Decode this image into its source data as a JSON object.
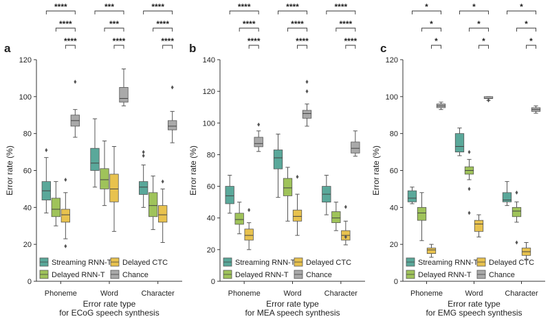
{
  "figure": {
    "legend": [
      {
        "label": "Streaming RNN-T",
        "color": "#5aa89a"
      },
      {
        "label": "Delayed CTC",
        "color": "#e8c24e"
      },
      {
        "label": "Delayed RNN-T",
        "color": "#9fc35a"
      },
      {
        "label": "Chance",
        "color": "#a9a9a9"
      }
    ],
    "colors": {
      "stroke": "#555555",
      "median": "#444444",
      "axis": "#333333"
    }
  },
  "chart_data": [
    {
      "type": "box",
      "panel": "a",
      "title": "",
      "xlabel": "Error rate type",
      "xlabel2": "for ECoG speech synthesis",
      "ylabel": "Error rate (%)",
      "ylim": [
        0,
        120
      ],
      "yticks": [
        0,
        20,
        40,
        60,
        80,
        100,
        120
      ],
      "categories": [
        "Phoneme",
        "Word",
        "Character"
      ],
      "significance": [
        [
          "****",
          "***",
          "****"
        ],
        [
          "****",
          "***",
          "****"
        ],
        [
          "****",
          "****",
          "****"
        ]
      ],
      "series": [
        {
          "name": "Streaming RNN-T",
          "boxes": [
            {
              "whislo": 37,
              "q1": 44,
              "med": 49,
              "q3": 54,
              "whishi": 67,
              "fliers": [
                71
              ]
            },
            {
              "whislo": 51,
              "q1": 60,
              "med": 64,
              "q3": 72,
              "whishi": 88,
              "fliers": []
            },
            {
              "whislo": 40,
              "q1": 47,
              "med": 51,
              "q3": 54,
              "whishi": 63,
              "fliers": [
                68,
                70
              ]
            }
          ]
        },
        {
          "name": "Delayed RNN-T",
          "boxes": [
            {
              "whislo": 30,
              "q1": 35,
              "med": 39,
              "q3": 45,
              "whishi": 54,
              "fliers": []
            },
            {
              "whislo": 41,
              "q1": 50,
              "med": 55,
              "q3": 61,
              "whishi": 76,
              "fliers": []
            },
            {
              "whislo": 28,
              "q1": 35,
              "med": 41,
              "q3": 48,
              "whishi": 57,
              "fliers": []
            }
          ]
        },
        {
          "name": "Delayed CTC",
          "boxes": [
            {
              "whislo": 23,
              "q1": 32,
              "med": 36,
              "q3": 39,
              "whishi": 48,
              "fliers": [
                19,
                55
              ]
            },
            {
              "whislo": 27,
              "q1": 43,
              "med": 50,
              "q3": 58,
              "whishi": 73,
              "fliers": []
            },
            {
              "whislo": 21,
              "q1": 32,
              "med": 36,
              "q3": 41,
              "whishi": 50,
              "fliers": [
                54
              ]
            }
          ]
        },
        {
          "name": "Chance",
          "boxes": [
            {
              "whislo": 78,
              "q1": 84,
              "med": 87,
              "q3": 90,
              "whishi": 93,
              "fliers": [
                108
              ]
            },
            {
              "whislo": 95,
              "q1": 97,
              "med": 99,
              "q3": 105,
              "whishi": 115,
              "fliers": []
            },
            {
              "whislo": 75,
              "q1": 82,
              "med": 84,
              "q3": 87,
              "whishi": 92,
              "fliers": [
                105
              ]
            }
          ]
        }
      ]
    },
    {
      "type": "box",
      "panel": "b",
      "title": "",
      "xlabel": "Error rate type",
      "xlabel2": "for MEA speech synthesis",
      "ylabel": "Error rate (%)",
      "ylim": [
        0,
        140
      ],
      "yticks": [
        0,
        20,
        40,
        60,
        80,
        100,
        120,
        140
      ],
      "categories": [
        "Phoneme",
        "Word",
        "Character"
      ],
      "significance": [
        [
          "****",
          "****",
          "****"
        ],
        [
          "****",
          "****",
          "****"
        ],
        [
          "****",
          "****",
          "****"
        ]
      ],
      "series": [
        {
          "name": "Streaming RNN-T",
          "boxes": [
            {
              "whislo": 43,
              "q1": 49,
              "med": 54,
              "q3": 60,
              "whishi": 67,
              "fliers": []
            },
            {
              "whislo": 53,
              "q1": 71,
              "med": 78,
              "q3": 83,
              "whishi": 93,
              "fliers": []
            },
            {
              "whislo": 42,
              "q1": 50,
              "med": 55,
              "q3": 60,
              "whishi": 67,
              "fliers": []
            }
          ]
        },
        {
          "name": "Delayed RNN-T",
          "boxes": [
            {
              "whislo": 30,
              "q1": 36,
              "med": 39,
              "q3": 43,
              "whishi": 50,
              "fliers": []
            },
            {
              "whislo": 38,
              "q1": 54,
              "med": 59,
              "q3": 65,
              "whishi": 72,
              "fliers": []
            },
            {
              "whislo": 32,
              "q1": 37,
              "med": 40,
              "q3": 44,
              "whishi": 50,
              "fliers": []
            }
          ]
        },
        {
          "name": "Delayed CTC",
          "boxes": [
            {
              "whislo": 20,
              "q1": 26,
              "med": 29,
              "q3": 33,
              "whishi": 37,
              "fliers": [
                45
              ]
            },
            {
              "whislo": 29,
              "q1": 38,
              "med": 41,
              "q3": 45,
              "whishi": 55,
              "fliers": [
                66
              ]
            },
            {
              "whislo": 23,
              "q1": 26,
              "med": 29,
              "q3": 32,
              "whishi": 38,
              "fliers": [
                28,
                47
              ]
            }
          ]
        },
        {
          "name": "Chance",
          "boxes": [
            {
              "whislo": 82,
              "q1": 85,
              "med": 87,
              "q3": 91,
              "whishi": 95,
              "fliers": [
                99
              ]
            },
            {
              "whislo": 98,
              "q1": 103,
              "med": 106,
              "q3": 108,
              "whishi": 112,
              "fliers": [
                120,
                126
              ]
            },
            {
              "whislo": 79,
              "q1": 81,
              "med": 84,
              "q3": 88,
              "whishi": 95,
              "fliers": []
            }
          ]
        }
      ]
    },
    {
      "type": "box",
      "panel": "c",
      "title": "",
      "xlabel": "Error rate type",
      "xlabel2": "for EMG speech synthesis",
      "ylabel": "Error rate (%)",
      "ylim": [
        0,
        120
      ],
      "yticks": [
        0,
        20,
        40,
        60,
        80,
        100,
        120
      ],
      "categories": [
        "Phoneme",
        "Word",
        "Character"
      ],
      "significance": [
        [
          "*",
          "*",
          "*"
        ],
        [
          "*",
          "*",
          "*"
        ],
        [
          "*",
          "*",
          "*"
        ]
      ],
      "series": [
        {
          "name": "Streaming RNN-T",
          "boxes": [
            {
              "whislo": 42,
              "q1": 43,
              "med": 45,
              "q3": 49,
              "whishi": 51,
              "fliers": []
            },
            {
              "whislo": 68,
              "q1": 70,
              "med": 73,
              "q3": 80,
              "whishi": 83,
              "fliers": []
            },
            {
              "whislo": 41,
              "q1": 43,
              "med": 44,
              "q3": 48,
              "whishi": 54,
              "fliers": []
            }
          ]
        },
        {
          "name": "Delayed RNN-T",
          "boxes": [
            {
              "whislo": 22,
              "q1": 33,
              "med": 37,
              "q3": 40,
              "whishi": 48,
              "fliers": []
            },
            {
              "whislo": 55,
              "q1": 58,
              "med": 60,
              "q3": 62,
              "whishi": 66,
              "fliers": [
                37,
                50,
                70
              ]
            },
            {
              "whislo": 32,
              "q1": 35,
              "med": 38,
              "q3": 40,
              "whishi": 43,
              "fliers": [
                21,
                48
              ]
            }
          ]
        },
        {
          "name": "Delayed CTC",
          "boxes": [
            {
              "whislo": 13,
              "q1": 15,
              "med": 17,
              "q3": 18,
              "whishi": 20,
              "fliers": []
            },
            {
              "whislo": 24,
              "q1": 27,
              "med": 31,
              "q3": 33,
              "whishi": 36,
              "fliers": []
            },
            {
              "whislo": 12,
              "q1": 14,
              "med": 16,
              "q3": 18,
              "whishi": 21,
              "fliers": []
            }
          ]
        },
        {
          "name": "Chance",
          "boxes": [
            {
              "whislo": 93,
              "q1": 94,
              "med": 95,
              "q3": 96,
              "whishi": 97,
              "fliers": []
            },
            {
              "whislo": 98,
              "q1": 99,
              "med": 99,
              "q3": 100,
              "whishi": 100,
              "fliers": [
                98
              ]
            },
            {
              "whislo": 91,
              "q1": 92,
              "med": 93,
              "q3": 94,
              "whishi": 95,
              "fliers": []
            }
          ]
        }
      ]
    }
  ]
}
